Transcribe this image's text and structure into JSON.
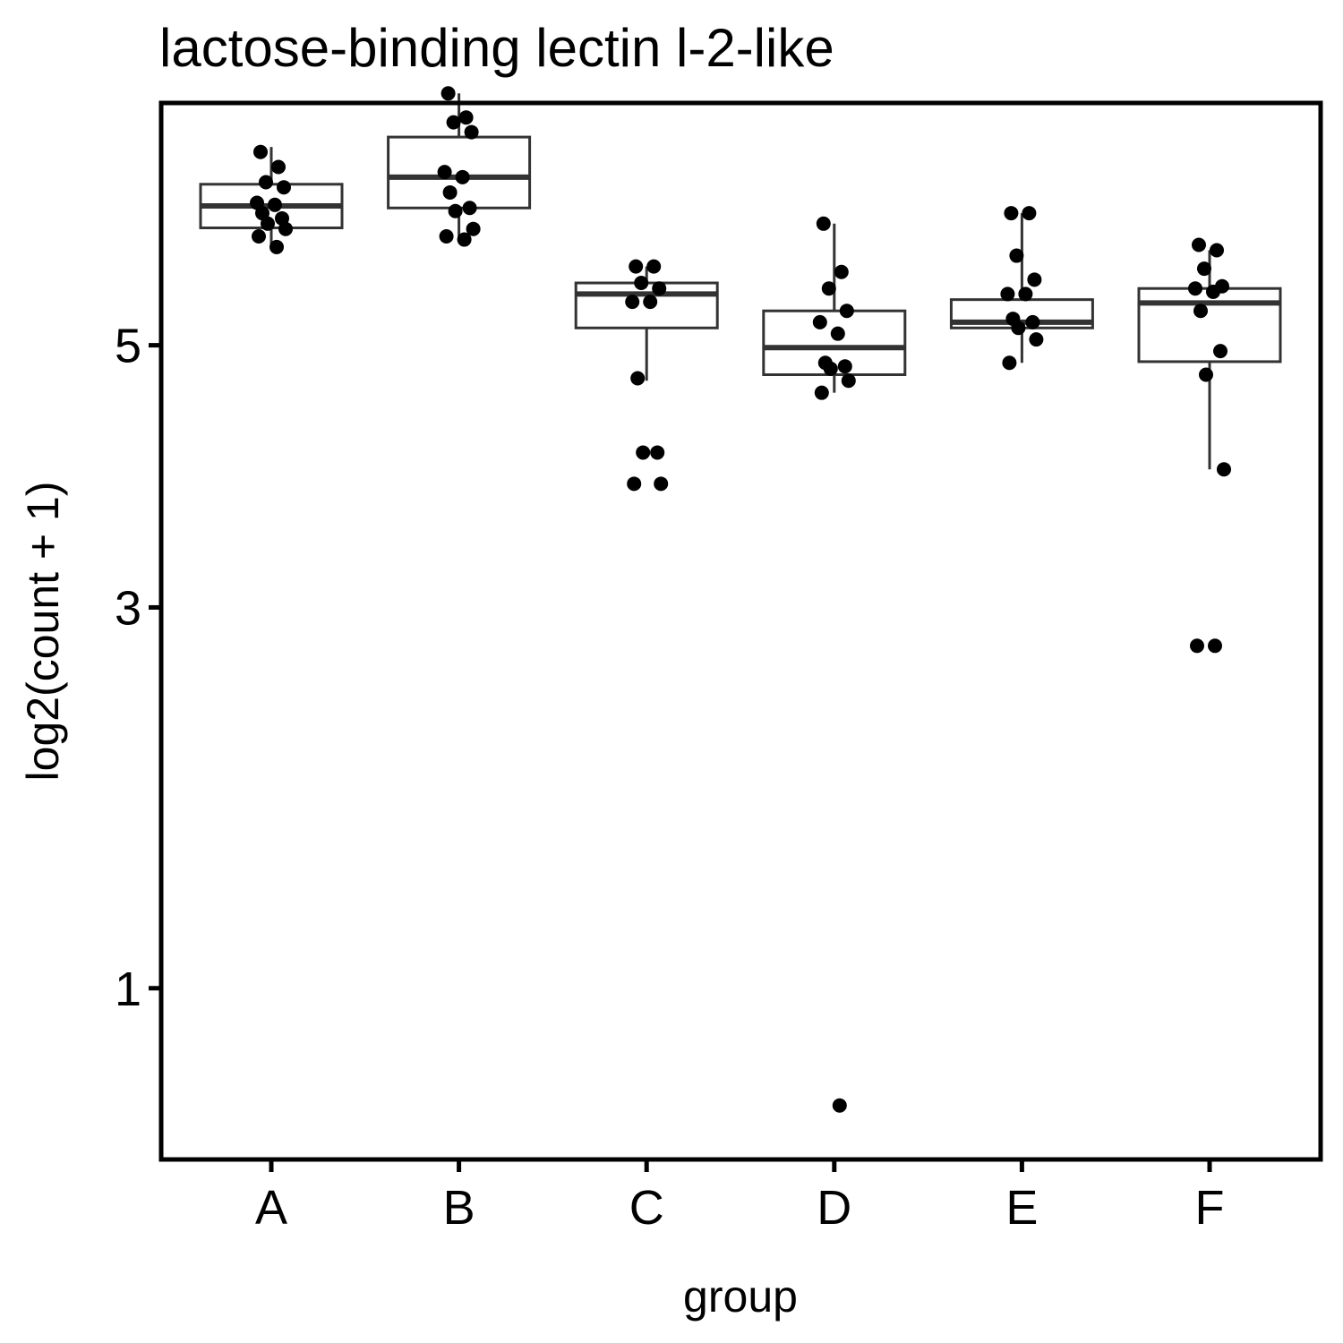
{
  "chart_data": {
    "type": "box",
    "title": "lactose-binding lectin l-2-like",
    "xlabel": "group",
    "ylabel": "log2(count + 1)",
    "y_scale": "sqrt",
    "ylim": [
      0.45,
      7.3
    ],
    "y_ticks": [
      1,
      3,
      5
    ],
    "grid": false,
    "legend": "none",
    "categories": [
      "A",
      "B",
      "C",
      "D",
      "E",
      "F"
    ],
    "boxes": [
      {
        "group": "A",
        "whisker_low": 5.85,
        "q1": 6.06,
        "median": 6.27,
        "q3": 6.48,
        "whisker_high": 6.85
      },
      {
        "group": "B",
        "whisker_low": 5.95,
        "q1": 6.25,
        "median": 6.55,
        "q3": 6.95,
        "whisker_high": 7.4
      },
      {
        "group": "C",
        "whisker_low": 4.7,
        "q1": 5.15,
        "median": 5.45,
        "q3": 5.55,
        "whisker_high": 5.7
      },
      {
        "group": "D",
        "whisker_low": 4.6,
        "q1": 4.75,
        "median": 4.98,
        "q3": 5.3,
        "whisker_high": 6.1
      },
      {
        "group": "E",
        "whisker_low": 4.85,
        "q1": 5.15,
        "median": 5.2,
        "q3": 5.4,
        "whisker_high": 6.2
      },
      {
        "group": "F",
        "whisker_low": 3.99,
        "q1": 4.86,
        "median": 5.37,
        "q3": 5.5,
        "whisker_high": 5.85
      }
    ],
    "points": [
      {
        "group": "A",
        "values": [
          6.8,
          6.65,
          6.5,
          6.45,
          6.3,
          6.28,
          6.2,
          6.15,
          6.1,
          6.05,
          5.98,
          5.88
        ]
      },
      {
        "group": "B",
        "values": [
          7.4,
          7.15,
          7.1,
          7.0,
          6.6,
          6.55,
          6.4,
          6.25,
          6.22,
          6.05,
          5.98,
          5.95
        ]
      },
      {
        "group": "C",
        "values": [
          5.7,
          5.7,
          5.55,
          5.5,
          5.38,
          5.38,
          4.72,
          4.12,
          4.12,
          3.88,
          3.88
        ]
      },
      {
        "group": "D",
        "values": [
          6.1,
          5.65,
          5.5,
          5.3,
          5.2,
          5.1,
          4.85,
          4.82,
          4.8,
          4.7,
          4.6,
          0.6
        ]
      },
      {
        "group": "E",
        "values": [
          6.2,
          6.2,
          5.8,
          5.58,
          5.45,
          5.45,
          5.23,
          5.2,
          5.15,
          5.05,
          4.85
        ]
      },
      {
        "group": "F",
        "values": [
          5.9,
          5.85,
          5.68,
          5.52,
          5.5,
          5.47,
          5.3,
          4.95,
          4.75,
          3.99,
          2.75,
          2.75
        ]
      }
    ]
  }
}
